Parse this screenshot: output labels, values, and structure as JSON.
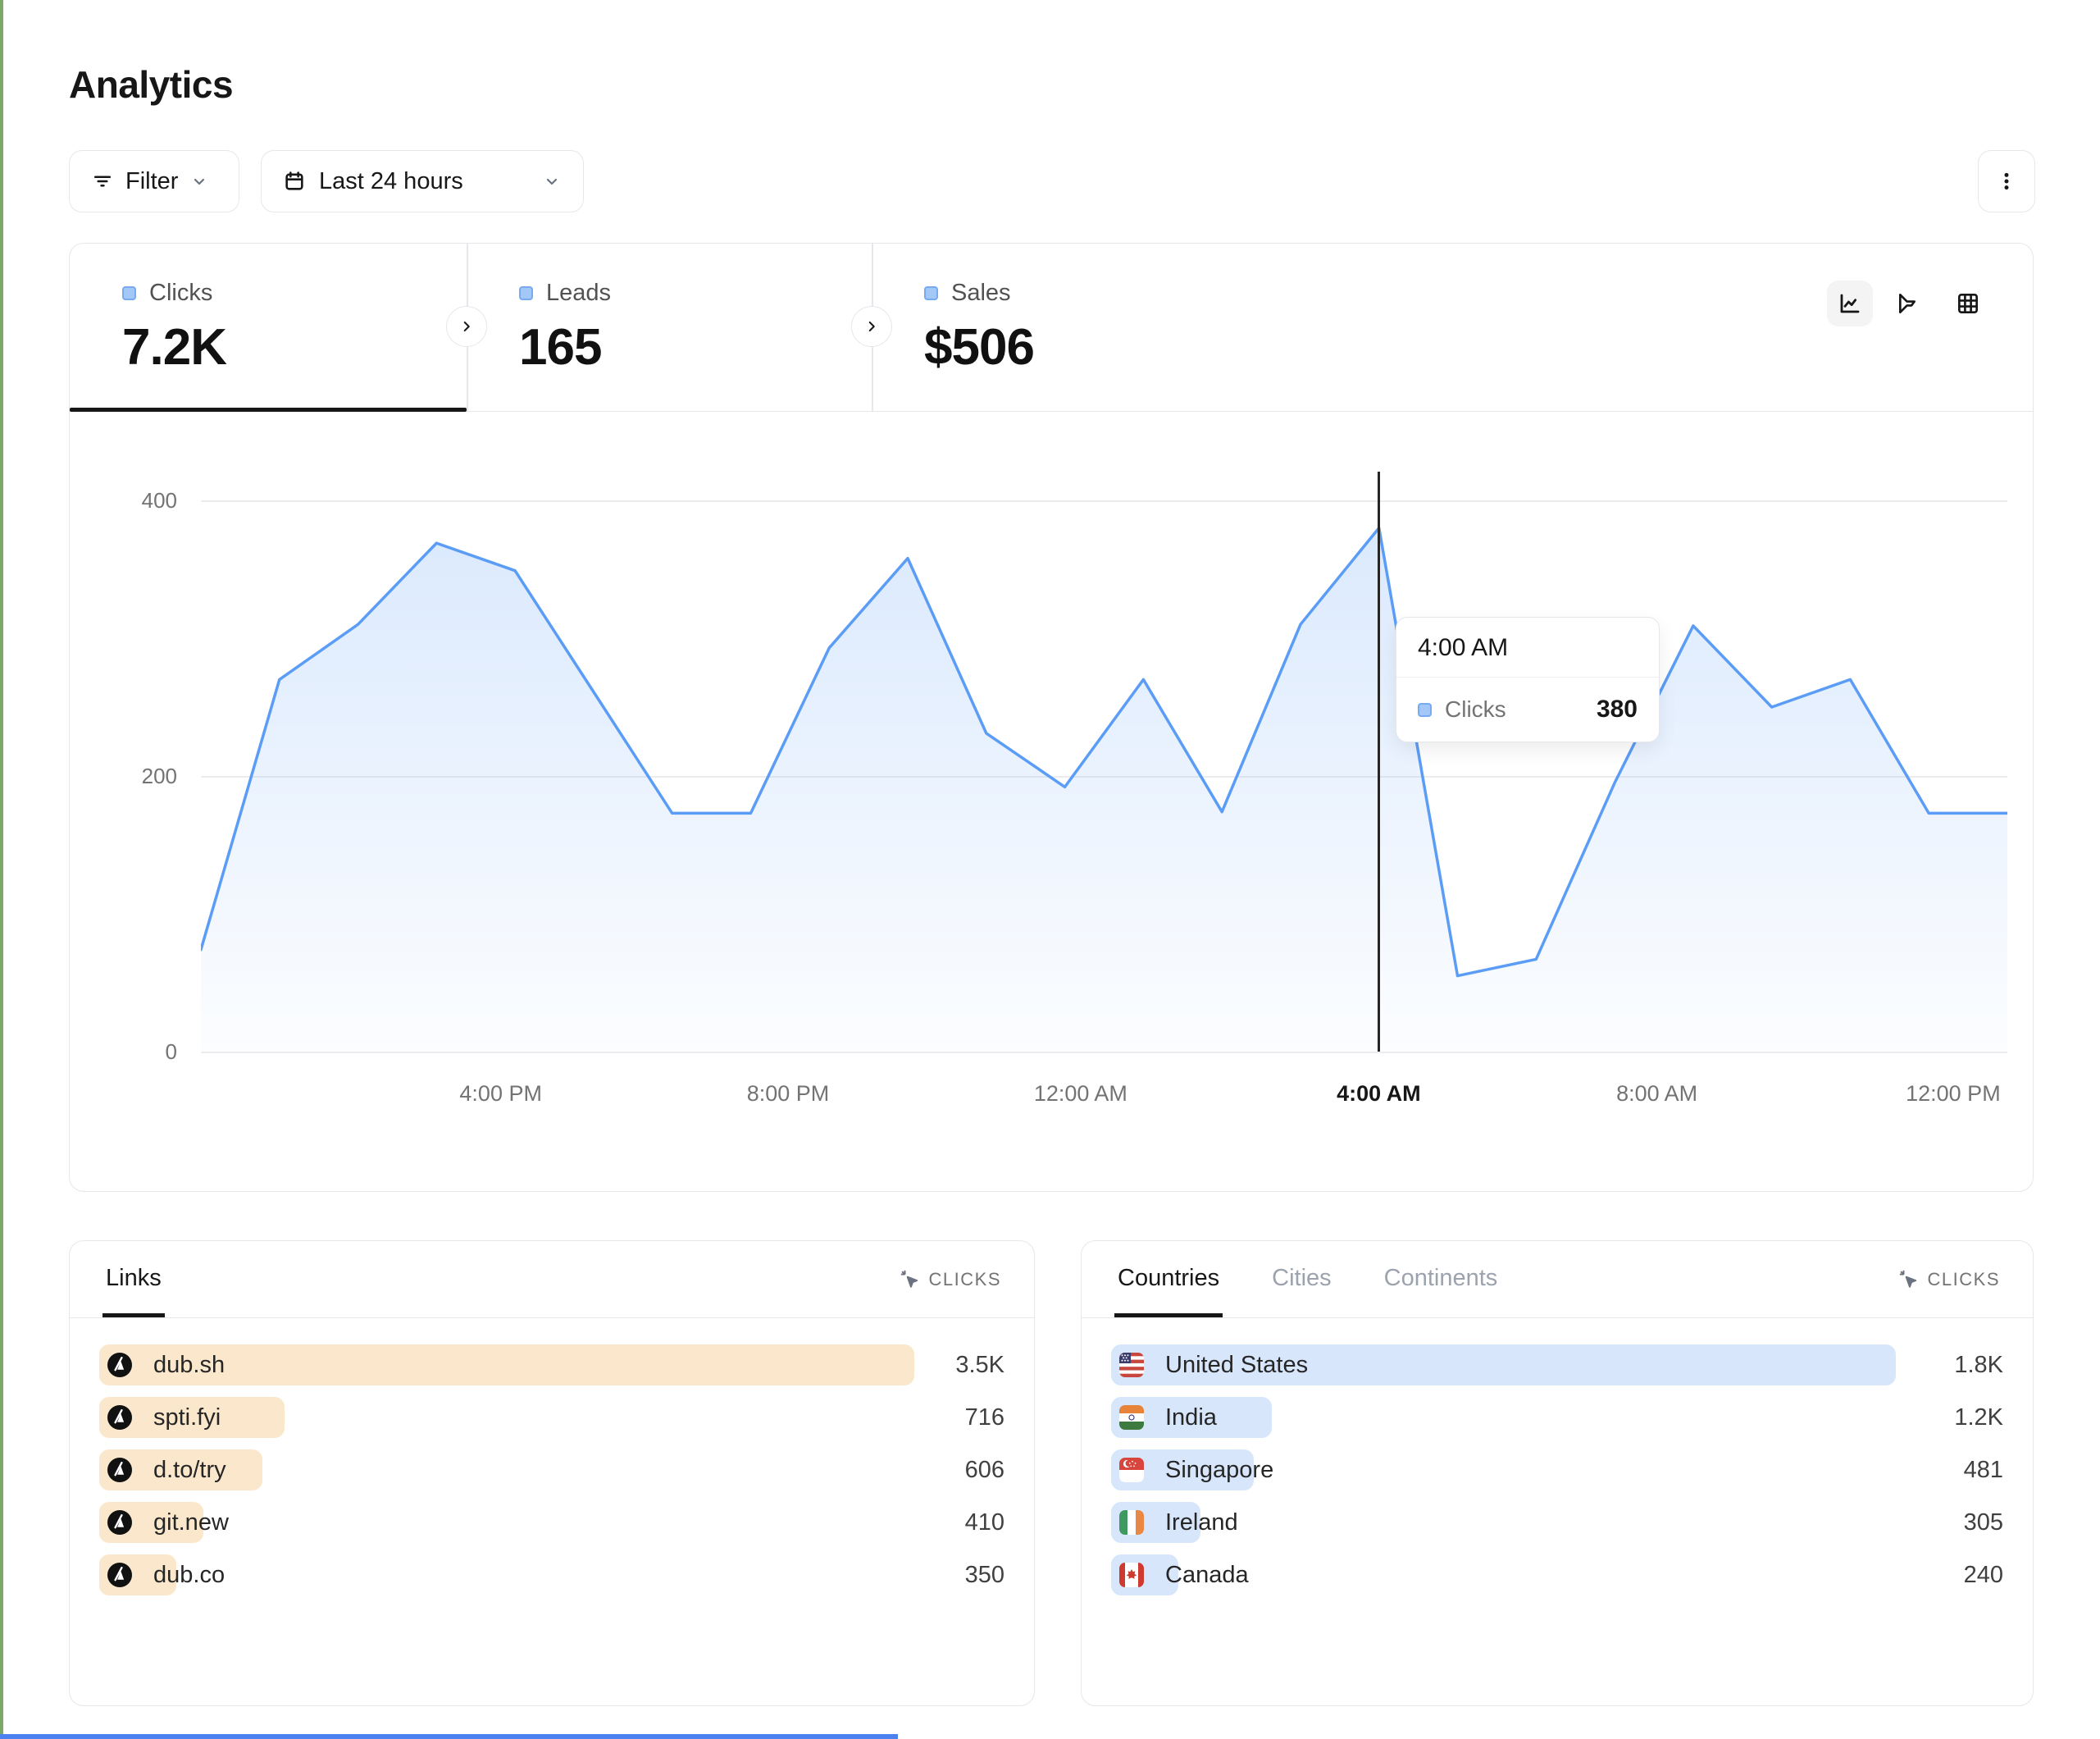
{
  "page": {
    "title": "Analytics"
  },
  "toolbar": {
    "filter": {
      "label": "Filter",
      "icon": "filter-lines-icon"
    },
    "date_range": {
      "label": "Last 24 hours",
      "icon": "calendar-icon"
    },
    "menu_icon": "kebab-menu-icon"
  },
  "stats": {
    "tabs": [
      {
        "label": "Clicks",
        "value": "7.2K",
        "active": true
      },
      {
        "label": "Leads",
        "value": "165",
        "active": false
      },
      {
        "label": "Sales",
        "value": "$506",
        "active": false
      }
    ]
  },
  "view_switcher": {
    "icons": [
      "line-chart-icon",
      "funnel-icon",
      "grid-icon"
    ],
    "active": "line-chart-icon"
  },
  "chart_data": {
    "type": "area",
    "series": [
      {
        "name": "Clicks",
        "color": "#5B9DF6",
        "values": [
          74,
          270,
          310,
          369,
          349,
          261,
          173,
          173,
          293,
          358,
          231,
          192,
          270,
          174,
          310,
          380,
          55,
          67,
          195,
          309,
          250,
          270,
          173,
          173
        ]
      }
    ],
    "x_ticks": [
      {
        "label": "4:00 PM",
        "pos": 0.166,
        "emphasized": false
      },
      {
        "label": "8:00 PM",
        "pos": 0.325,
        "emphasized": false
      },
      {
        "label": "12:00 AM",
        "pos": 0.487,
        "emphasized": false
      },
      {
        "label": "4:00 AM",
        "pos": 0.652,
        "emphasized": true
      },
      {
        "label": "8:00 AM",
        "pos": 0.806,
        "emphasized": false
      },
      {
        "label": "12:00 PM",
        "pos": 0.97,
        "emphasized": false
      }
    ],
    "y_ticks": [
      {
        "label": "400",
        "value": 400
      },
      {
        "label": "200",
        "value": 200
      },
      {
        "label": "0",
        "value": 0
      }
    ],
    "ylim": [
      0,
      400
    ],
    "grid": "horizontal",
    "legend_position": "none",
    "hover": {
      "index": 15,
      "time": "4:00 AM",
      "series": "Clicks",
      "value": "380"
    }
  },
  "links_panel": {
    "tabs": [
      {
        "label": "Links",
        "active": true
      }
    ],
    "metric_label": "CLICKS",
    "bar_color": "#FBE7CC",
    "rows": [
      {
        "label": "dub.sh",
        "value": "3.5K",
        "bar_pct": 90
      },
      {
        "label": "spti.fyi",
        "value": "716",
        "bar_pct": 20.5
      },
      {
        "label": "d.to/try",
        "value": "606",
        "bar_pct": 18
      },
      {
        "label": "git.new",
        "value": "410",
        "bar_pct": 11.5
      },
      {
        "label": "dub.co",
        "value": "350",
        "bar_pct": 8.5
      }
    ]
  },
  "countries_panel": {
    "tabs": [
      {
        "label": "Countries",
        "active": true
      },
      {
        "label": "Cities",
        "active": false
      },
      {
        "label": "Continents",
        "active": false
      }
    ],
    "metric_label": "CLICKS",
    "bar_color": "#D8E6FC",
    "rows": [
      {
        "label": "United States",
        "flag": "us",
        "value": "1.8K",
        "bar_pct": 88
      },
      {
        "label": "India",
        "flag": "in",
        "value": "1.2K",
        "bar_pct": 18
      },
      {
        "label": "Singapore",
        "flag": "sg",
        "value": "481",
        "bar_pct": 16
      },
      {
        "label": "Ireland",
        "flag": "ie",
        "value": "305",
        "bar_pct": 10
      },
      {
        "label": "Canada",
        "flag": "ca",
        "value": "240",
        "bar_pct": 7.5
      }
    ]
  },
  "colors": {
    "accent_blue": "#5B9DF6",
    "legend_square_fill": "#A3C8F8",
    "legend_square_border": "#76ABF1",
    "link_bar": "#FBE7CC",
    "country_bar": "#D8E6FC",
    "hover_line": "#262626",
    "border": "#E5E7EB",
    "edge_left_green": "#7CA966",
    "edge_bottom_blue": "#4B82F0"
  }
}
